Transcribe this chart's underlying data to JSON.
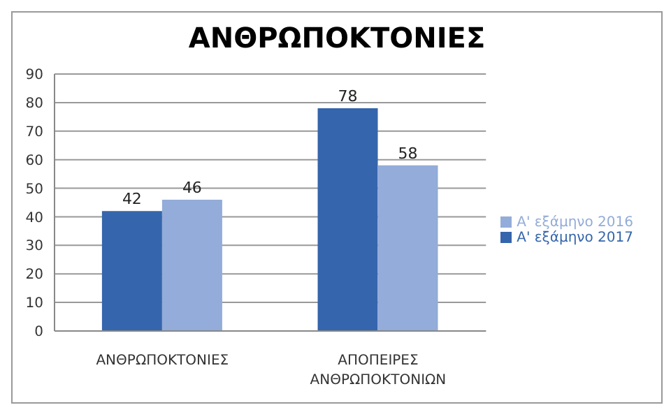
{
  "chart_data": {
    "type": "bar",
    "title": "ΑΝΘΡΩΠΟΚΤΟΝΙΕΣ",
    "categories": [
      "ΑΝΘΡΩΠΟΚΤΟΝΙΕΣ",
      "ΑΠΟΠΕΙΡΕΣ ΑΝΘΡΩΠΟΚΤΟΝΙΩΝ"
    ],
    "series": [
      {
        "name": "Α' εξάμηνο 2017",
        "color": "#3565ac",
        "values": [
          42,
          78
        ]
      },
      {
        "name": "Α' εξάμηνο 2016",
        "color": "#93acd9",
        "values": [
          46,
          58
        ]
      }
    ],
    "ylim": [
      0,
      90
    ],
    "yticks": [
      0,
      10,
      20,
      30,
      40,
      50,
      60,
      70,
      80,
      90
    ],
    "grid": "y",
    "legend": "right",
    "data_labels": true
  }
}
